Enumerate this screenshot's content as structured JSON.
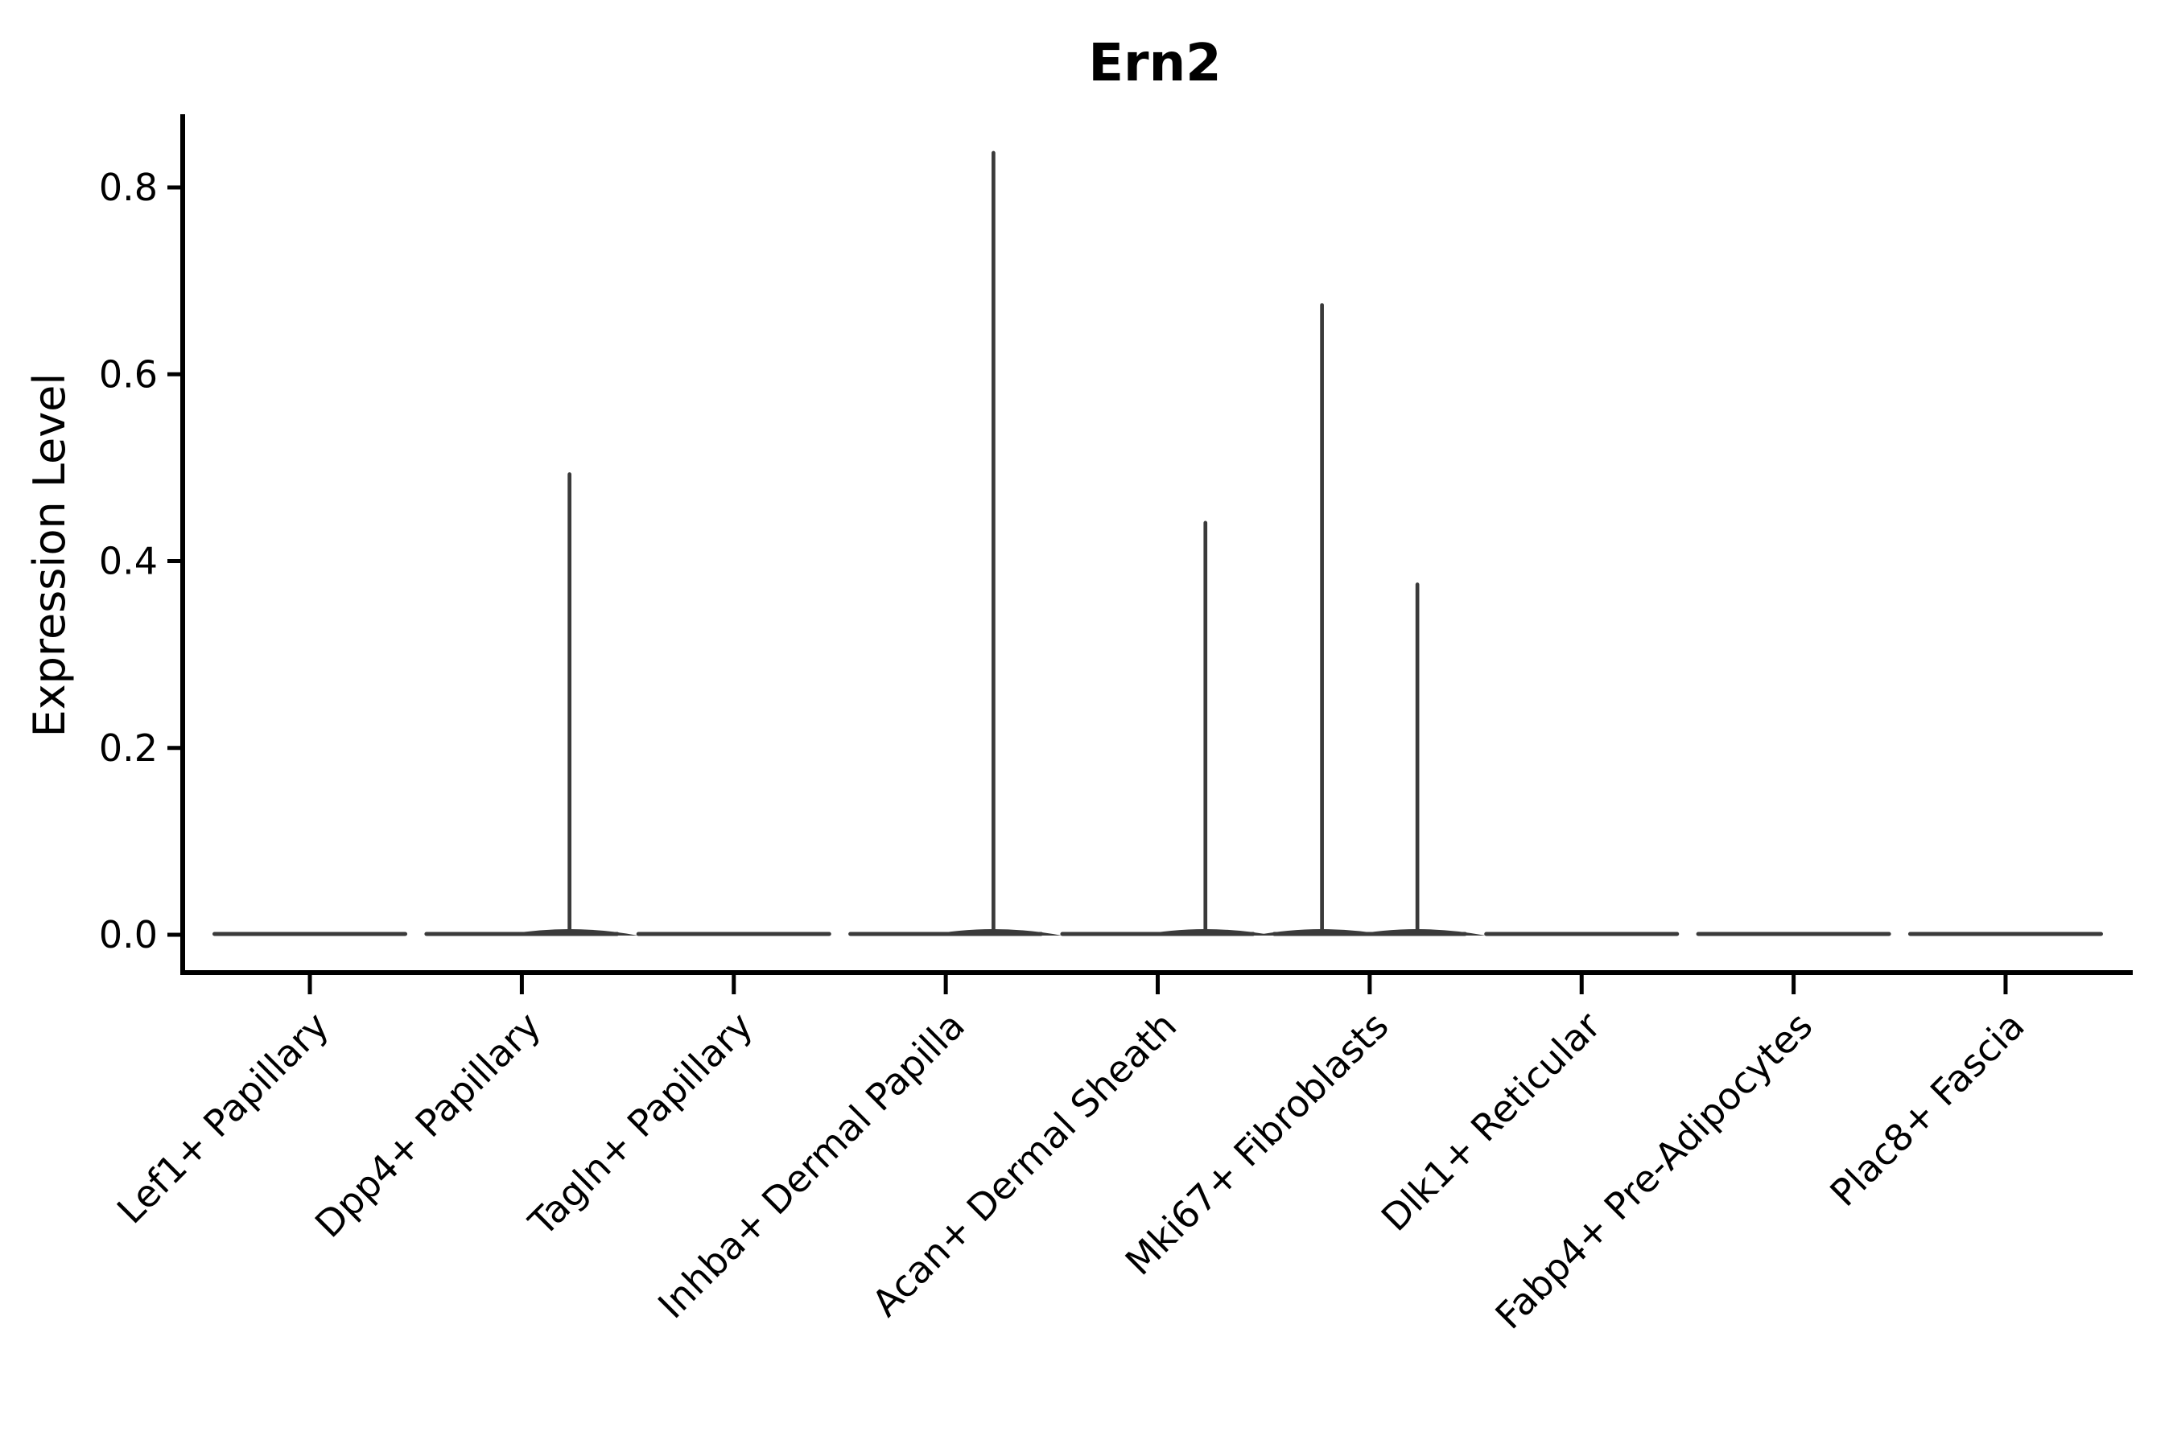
{
  "figure": {
    "background": "#ffffff"
  },
  "chart_data": {
    "type": "violin",
    "title": "Ern2",
    "xlabel": "",
    "ylabel": "Expression Level",
    "ylim": [
      0,
      0.878
    ],
    "grid": false,
    "legend_position": "none",
    "axis_style": "despined-top-right",
    "yticks": [
      {
        "value": 0.0,
        "label": "0.0"
      },
      {
        "value": 0.2,
        "label": "0.2"
      },
      {
        "value": 0.4,
        "label": "0.4"
      },
      {
        "value": 0.6,
        "label": "0.6"
      },
      {
        "value": 0.8,
        "label": "0.8"
      }
    ],
    "categories": [
      "Lef1+ Papillary",
      "Dpp4+ Papillary",
      "Tagln+ Papillary",
      "Inhba+ Dermal Papilla",
      "Acan+ Dermal Sheath",
      "Mki67+ Fibroblasts",
      "Dlk1+ Reticular",
      "Fabp4+ Pre-Adipocytes",
      "Plac8+ Fascia"
    ],
    "violins": [
      {
        "category": "Lef1+ Papillary",
        "baseline_value": 0,
        "max_value": 0,
        "spikes": []
      },
      {
        "category": "Dpp4+ Papillary",
        "baseline_value": 0,
        "max_value": 0.493,
        "spikes": [
          {
            "offset": 0.225,
            "value": 0.493
          }
        ]
      },
      {
        "category": "Tagln+ Papillary",
        "baseline_value": 0,
        "max_value": 0,
        "spikes": []
      },
      {
        "category": "Inhba+ Dermal Papilla",
        "baseline_value": 0,
        "max_value": 0.837,
        "spikes": [
          {
            "offset": 0.225,
            "value": 0.837
          }
        ]
      },
      {
        "category": "Acan+ Dermal Sheath",
        "baseline_value": 0,
        "max_value": 0.441,
        "spikes": [
          {
            "offset": 0.225,
            "value": 0.441
          }
        ]
      },
      {
        "category": "Mki67+ Fibroblasts",
        "baseline_value": 0,
        "max_value": 0.674,
        "spikes": [
          {
            "offset": -0.225,
            "value": 0.674
          },
          {
            "offset": 0.225,
            "value": 0.375
          }
        ]
      },
      {
        "category": "Dlk1+ Reticular",
        "baseline_value": 0,
        "max_value": 0,
        "spikes": []
      },
      {
        "category": "Fabp4+ Pre-Adipocytes",
        "baseline_value": 0,
        "max_value": 0,
        "spikes": []
      },
      {
        "category": "Plac8+ Fascia",
        "baseline_value": 0,
        "max_value": 0,
        "spikes": []
      }
    ],
    "colors": {
      "violin": "#3a3a3a",
      "axis": "#000000",
      "text": "#000000",
      "background": "#ffffff"
    }
  }
}
